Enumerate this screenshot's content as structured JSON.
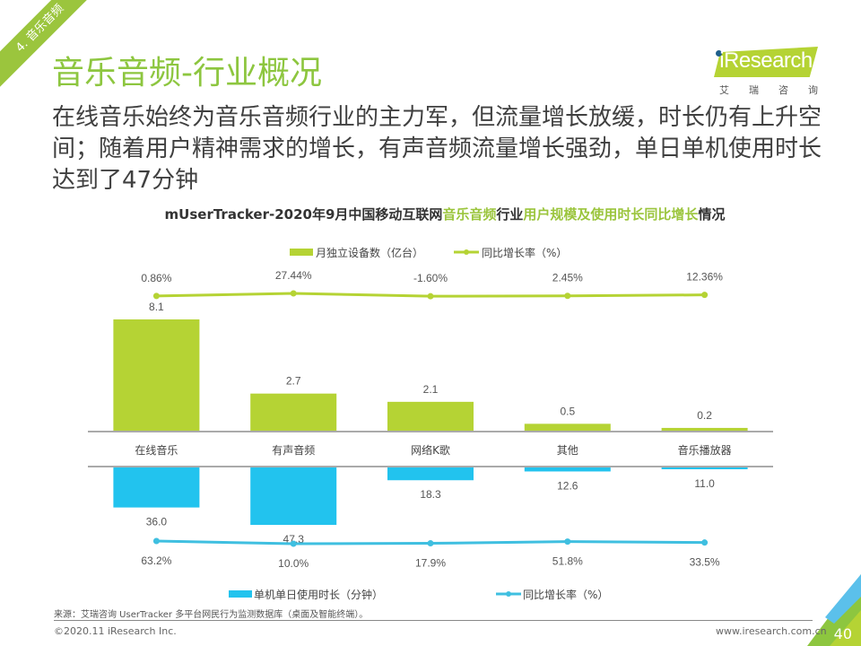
{
  "section_tag": "4. 音乐音频",
  "title": "音乐音频-行业概况",
  "logo": {
    "brand": "iResearch",
    "brand_cn": [
      "艾",
      "瑞",
      "咨",
      "询"
    ]
  },
  "headline": "在线音乐始终为音乐音频行业的主力军，但流量增长放缓，时长仍有上升空间；随着用户精神需求的增长，有声音频流量增长强劲，单日单机使用时长达到了47分钟",
  "colors": {
    "green": "#b5d334",
    "blue": "#22c3ee",
    "green_line": "#b5d334",
    "blue_line": "#3fbfe0"
  },
  "chart_data": {
    "type": "bar",
    "title_parts": [
      {
        "text": "mUserTracker-2020年9月中国移动互联网",
        "highlight": false
      },
      {
        "text": "音乐音频",
        "highlight": true
      },
      {
        "text": "行业",
        "highlight": false
      },
      {
        "text": "用户规模及使用时长同比增长",
        "highlight": true
      },
      {
        "text": "情况",
        "highlight": false
      }
    ],
    "categories": [
      "在线音乐",
      "有声音频",
      "网络K歌",
      "其他",
      "音乐播放器"
    ],
    "upper": {
      "bar_series": {
        "name": "月独立设备数（亿台）",
        "values": [
          8.1,
          2.7,
          2.1,
          0.5,
          0.2
        ],
        "labels": [
          "8.1",
          "2.7",
          "2.1",
          "0.5",
          "0.2"
        ]
      },
      "line_series": {
        "name": "同比增长率（%）",
        "values": [
          0.86,
          27.44,
          -1.6,
          2.45,
          12.36
        ],
        "labels": [
          "0.86%",
          "27.44%",
          "-1.60%",
          "2.45%",
          "12.36%"
        ]
      }
    },
    "lower": {
      "bar_series": {
        "name": "单机单日使用时长（分钟）",
        "values": [
          36.0,
          47.3,
          18.3,
          12.6,
          11.0
        ],
        "labels": [
          "36.0",
          "47.3",
          "18.3",
          "12.6",
          "11.0"
        ]
      },
      "line_series": {
        "name": "同比增长率（%）",
        "values": [
          63.2,
          10.0,
          17.9,
          51.8,
          33.5
        ],
        "labels": [
          "63.2%",
          "10.0%",
          "17.9%",
          "51.8%",
          "33.5%"
        ]
      }
    },
    "legend_position": "top (upper chart), bottom (lower chart)",
    "grid": false
  },
  "footer": {
    "source": "来源：艾瑞咨询 UserTracker 多平台网民行为监测数据库（桌面及智能终端）。",
    "copyright": "©2020.11 iResearch Inc.",
    "site": "www.iresearch.com.cn",
    "page_number": "40"
  }
}
